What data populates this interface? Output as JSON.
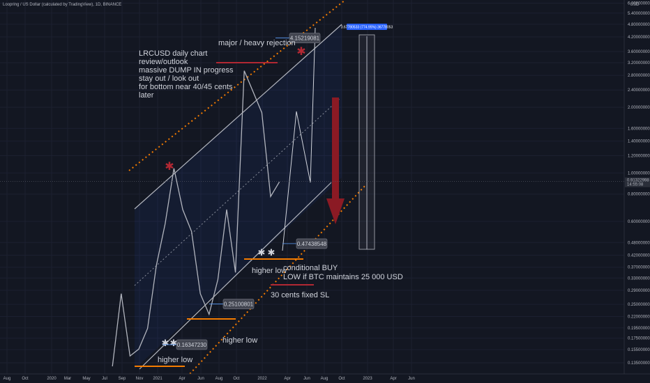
{
  "header": {
    "title": "Loopring / US Dollar (calculated by TradingView), 1D, BINANCE"
  },
  "chart_data": {
    "type": "line",
    "currency": "USD",
    "log_scale": true,
    "grid": true,
    "x": [
      "2020-08",
      "2020-09",
      "2020-10",
      "2020-11",
      "2020-12",
      "2021-01",
      "2021-02",
      "2021-03",
      "2021-04",
      "2021-05",
      "2021-06",
      "2021-07",
      "2021-08",
      "2021-09",
      "2021-10",
      "2021-11",
      "2021-12",
      "2022-01",
      "2022-02",
      "2022-03"
    ],
    "series": [
      {
        "color": "#b2b5be",
        "values": [
          0.13,
          0.28,
          0.145,
          0.156,
          0.194,
          0.377,
          0.585,
          1.05,
          0.68,
          0.54,
          0.28,
          0.225,
          0.325,
          0.68,
          0.35,
          2.94,
          2.36,
          1.89,
          0.78,
          0.91
        ]
      }
    ],
    "ylim": [
      0.12,
      6.2
    ],
    "yticks": [
      {
        "value": 6.0,
        "label": "6.00000000"
      },
      {
        "value": 5.4,
        "label": "5.40000000"
      },
      {
        "value": 4.8,
        "label": "4.80000000"
      },
      {
        "value": 4.2,
        "label": "4.20000000"
      },
      {
        "value": 3.6,
        "label": "3.60000000"
      },
      {
        "value": 3.2,
        "label": "3.20000000"
      },
      {
        "value": 2.8,
        "label": "2.80000000"
      },
      {
        "value": 2.4,
        "label": "2.40000000"
      },
      {
        "value": 2.0,
        "label": "2.00000000"
      },
      {
        "value": 1.6,
        "label": "1.60000000"
      },
      {
        "value": 1.4,
        "label": "1.40000000"
      },
      {
        "value": 1.2,
        "label": "1.20000000"
      },
      {
        "value": 1.0,
        "label": "1.00000000"
      },
      {
        "value": 0.8,
        "label": "0.80000000"
      },
      {
        "value": 0.6,
        "label": "0.60000000"
      },
      {
        "value": 0.48,
        "label": "0.48000000"
      },
      {
        "value": 0.42,
        "label": "0.42000000"
      },
      {
        "value": 0.37,
        "label": "0.37000000"
      },
      {
        "value": 0.33,
        "label": "0.33000000"
      },
      {
        "value": 0.29,
        "label": "0.29000000"
      },
      {
        "value": 0.25,
        "label": "0.25000000"
      },
      {
        "value": 0.22,
        "label": "0.22000000"
      },
      {
        "value": 0.195,
        "label": "0.19500000"
      },
      {
        "value": 0.175,
        "label": "0.17500000"
      },
      {
        "value": 0.155,
        "label": "0.15500000"
      },
      {
        "value": 0.135,
        "label": "0.13500000"
      }
    ],
    "xtick_labels": [
      "Aug",
      "Oct",
      "2020",
      "Mar",
      "May",
      "Jul",
      "Sep",
      "Nov",
      "2021",
      "Apr",
      "Jun",
      "Aug",
      "Oct",
      "2022",
      "Apr",
      "Jun",
      "Aug",
      "Oct",
      "2023",
      "Apr",
      "Jun"
    ],
    "last_price": {
      "value": 0.91322998,
      "label": "0.91322998"
    },
    "countdown": "14:55:08",
    "range_label": "3.67780533 (774.95%) 36778053",
    "price_labels": [
      {
        "value": 4.15219081,
        "label": "4.15219081"
      },
      {
        "value": 0.47438548,
        "label": "0.47438548"
      },
      {
        "value": 0.25100801,
        "label": "0.25100801"
      },
      {
        "value": 0.1634723,
        "label": "0.16347230"
      }
    ],
    "annotations": [
      "LRCUSD daily chart",
      "review/outlook",
      "massive DUMP IN progress",
      "stay out / look out",
      "for bottom near 40/45 cents",
      "later",
      "major / heavy rejection",
      "higher low",
      "higher low",
      "higher low",
      "conditional BUY",
      "LOW if BTC maintains 25 000 USD",
      "30 cents fixed SL"
    ]
  }
}
